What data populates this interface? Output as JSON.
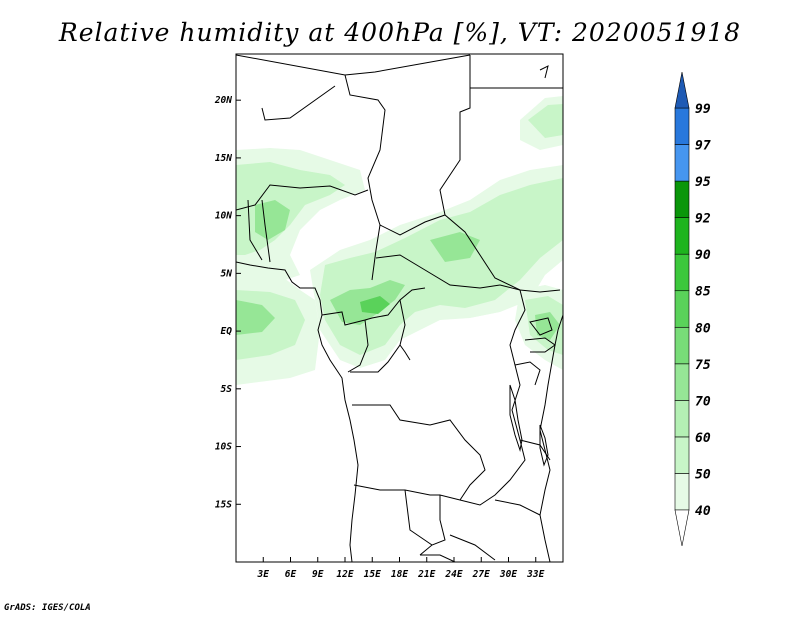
{
  "title": "Relative humidity at 400hPa [%], VT: 2020051918",
  "credit": "GrADS: IGES/COLA",
  "map": {
    "lon_range": [
      0,
      36
    ],
    "lat_range": [
      -20,
      24
    ],
    "x_ticks": [
      "3E",
      "6E",
      "9E",
      "12E",
      "15E",
      "18E",
      "21E",
      "24E",
      "27E",
      "30E",
      "33E"
    ],
    "x_tick_values": [
      3,
      6,
      9,
      12,
      15,
      18,
      21,
      24,
      27,
      30,
      33
    ],
    "y_ticks": [
      "20N",
      "15N",
      "10N",
      "5N",
      "EQ",
      "5S",
      "10S",
      "15S"
    ],
    "y_tick_values": [
      20,
      15,
      10,
      5,
      0,
      -5,
      -10,
      -15
    ]
  },
  "colorbar": {
    "labels": [
      "40",
      "50",
      "60",
      "70",
      "75",
      "80",
      "85",
      "90",
      "92",
      "95",
      "97",
      "99"
    ],
    "colors": [
      "#e6fae6",
      "#c8f5c8",
      "#b4f0b4",
      "#96e696",
      "#78dc78",
      "#5ad25a",
      "#3cc83c",
      "#1eb41e",
      "#0a960a",
      "#4696f0",
      "#2878dc",
      "#1e5ab4"
    ],
    "under_color": "#ffffff",
    "over_color": "#1e5ab4"
  }
}
